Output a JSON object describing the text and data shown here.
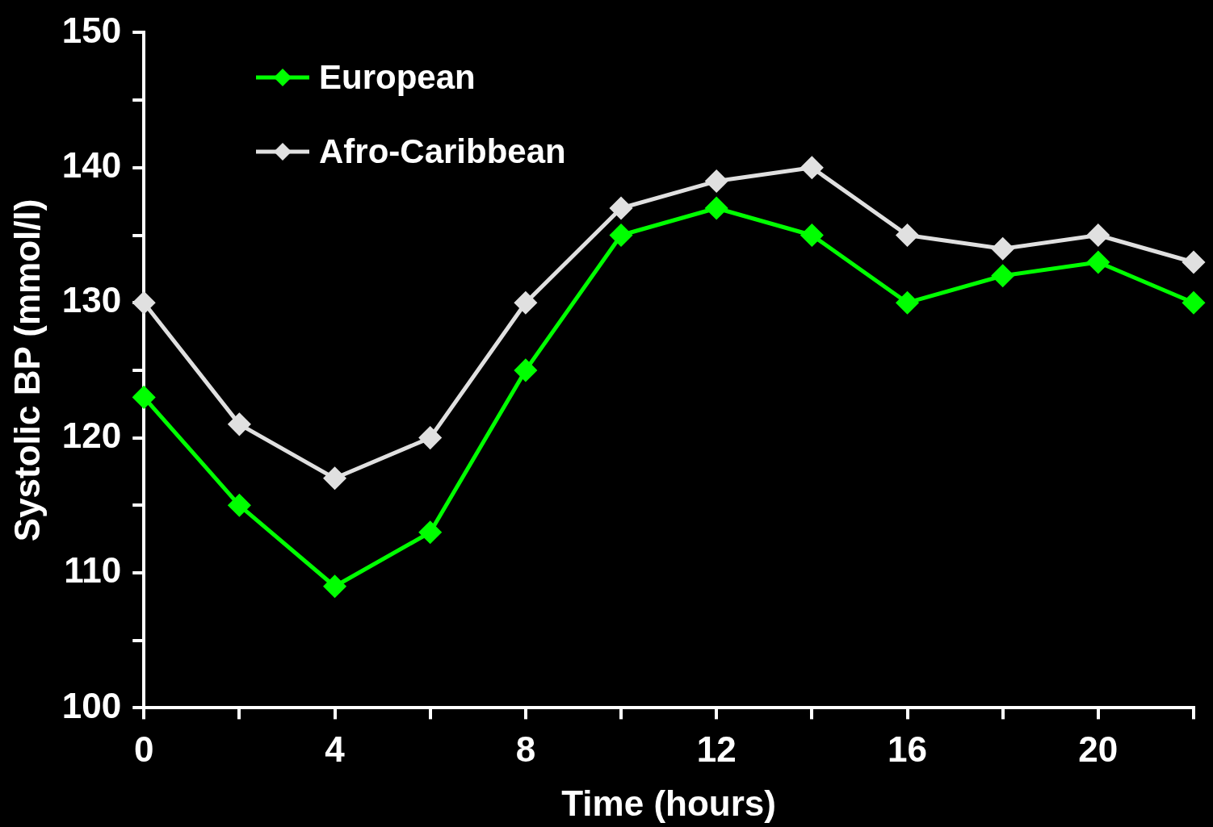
{
  "chart_data": {
    "type": "line",
    "xlabel": "Time (hours)",
    "ylabel": "Systolic BP (mmol/l)",
    "x": [
      0,
      2,
      4,
      6,
      8,
      10,
      12,
      14,
      16,
      18,
      20,
      22
    ],
    "series": [
      {
        "name": "European",
        "color": "#00ff00",
        "values": [
          123,
          115,
          109,
          113,
          125,
          135,
          137,
          135,
          130,
          132,
          133,
          130
        ]
      },
      {
        "name": "Afro-Caribbean",
        "color": "#e0e0e0",
        "values": [
          130,
          121,
          117,
          120,
          130,
          137,
          139,
          140,
          135,
          134,
          135,
          133
        ]
      }
    ],
    "xlim": [
      0,
      22
    ],
    "xticks": [
      0,
      {
        "value": 2,
        "label": null
      },
      4,
      {
        "value": 6,
        "label": null
      },
      8,
      {
        "value": 10,
        "label": null
      },
      12,
      {
        "value": 14,
        "label": null
      },
      16,
      {
        "value": 18,
        "label": null
      },
      20,
      {
        "value": 22,
        "label": null
      }
    ],
    "ylim": [
      100,
      150
    ],
    "yticks": [
      100,
      {
        "value": 105,
        "label": null
      },
      110,
      {
        "value": 115,
        "label": null
      },
      120,
      {
        "value": 125,
        "label": null
      },
      130,
      {
        "value": 135,
        "label": null
      },
      140,
      {
        "value": 145,
        "label": null
      },
      150
    ],
    "grid": false,
    "legend": "top left",
    "marker": "diamond",
    "line_style": "solid"
  }
}
